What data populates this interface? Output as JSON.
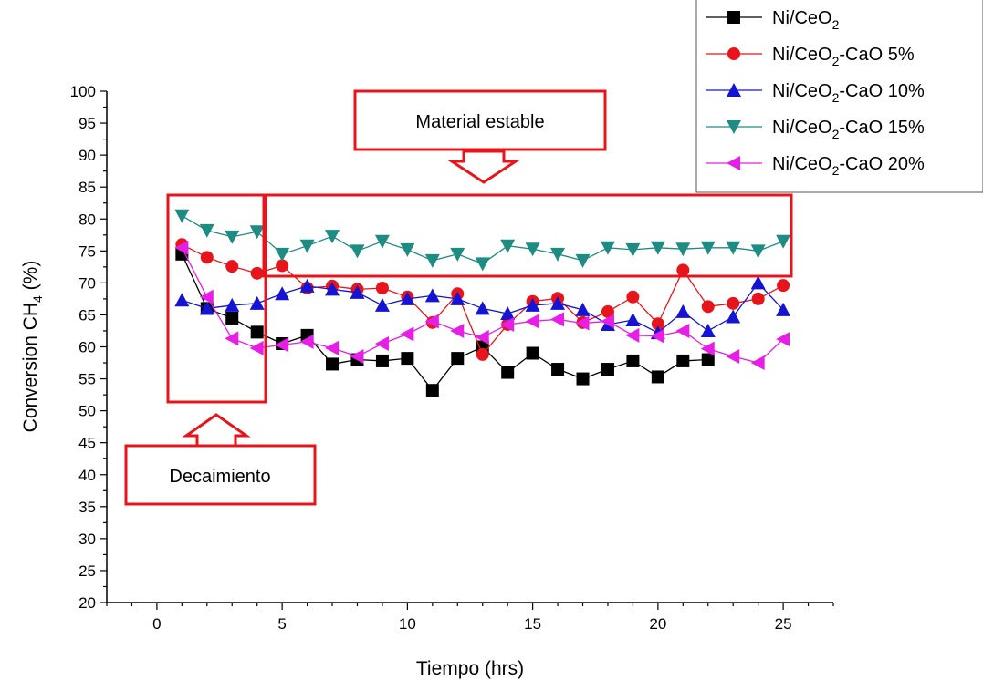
{
  "chart_data": {
    "type": "line",
    "xlabel": "Tiempo (hrs)",
    "ylabel_main": "Conversion CH",
    "ylabel_sub": "4",
    "ylabel_tail": " (%)",
    "xlim": [
      -2,
      27
    ],
    "ylim": [
      20,
      100
    ],
    "xticks": [
      0,
      5,
      10,
      15,
      20,
      25
    ],
    "yticks": [
      20,
      25,
      30,
      35,
      40,
      45,
      50,
      55,
      60,
      65,
      70,
      75,
      80,
      85,
      90,
      95,
      100
    ],
    "grid": false,
    "legend_position": "top-right",
    "series": [
      {
        "name_main": "Ni/CeO",
        "name_sub": "2",
        "name_tail": "",
        "color": "#000000",
        "marker": "square",
        "x": [
          1,
          2,
          3,
          4,
          5,
          6,
          7,
          8,
          9,
          10,
          11,
          12,
          13,
          14,
          15,
          16,
          17,
          18,
          19,
          20,
          21,
          22
        ],
        "y": [
          74.5,
          66,
          64.5,
          62.3,
          60.5,
          61.8,
          57.3,
          58,
          57.8,
          58.2,
          53.2,
          58.2,
          60,
          56,
          59,
          56.5,
          55,
          56.5,
          57.8,
          55.3,
          57.8,
          58
        ]
      },
      {
        "name_main": "Ni/CeO",
        "name_sub": "2",
        "name_tail": "-CaO 5%",
        "color": "#e8141b",
        "marker": "circle",
        "x": [
          1,
          2,
          3,
          4,
          5,
          6,
          7,
          8,
          9,
          10,
          11,
          12,
          13,
          14,
          15,
          16,
          17,
          18,
          19,
          20,
          21,
          22,
          23,
          24,
          25
        ],
        "y": [
          76,
          74,
          72.6,
          71.5,
          72.7,
          69.2,
          69.5,
          69,
          69.2,
          67.8,
          63.8,
          68.3,
          58.8,
          63.5,
          67.1,
          67.6,
          63.8,
          65.5,
          67.8,
          63.6,
          72,
          66.3,
          66.8,
          67.5,
          69.6
        ]
      },
      {
        "name_main": "Ni/CeO",
        "name_sub": "2",
        "name_tail": "-CaO 10%",
        "color": "#1414d2",
        "marker": "triangle-up",
        "x": [
          1,
          2,
          3,
          4,
          5,
          6,
          7,
          8,
          9,
          10,
          11,
          12,
          13,
          14,
          15,
          16,
          17,
          18,
          19,
          20,
          21,
          22,
          23,
          24,
          25
        ],
        "y": [
          67.3,
          66,
          66.5,
          66.8,
          68.3,
          69.5,
          69,
          68.5,
          66.5,
          67.5,
          68,
          67.5,
          66,
          65.2,
          66.5,
          66.8,
          65.8,
          63.5,
          64.2,
          62.2,
          65.5,
          62.5,
          64.7,
          70,
          65.8
        ]
      },
      {
        "name_main": "Ni/CeO",
        "name_sub": "2",
        "name_tail": "-CaO 15%",
        "color": "#1e8c82",
        "marker": "triangle-down",
        "x": [
          1,
          2,
          3,
          4,
          5,
          6,
          7,
          8,
          9,
          10,
          11,
          12,
          13,
          14,
          15,
          16,
          17,
          18,
          19,
          20,
          21,
          22,
          23,
          24,
          25
        ],
        "y": [
          80.5,
          78.2,
          77.2,
          78,
          74.5,
          75.8,
          77.3,
          75,
          76.5,
          75.2,
          73.5,
          74.5,
          73,
          75.8,
          75.3,
          74.5,
          73.5,
          75.5,
          75.2,
          75.5,
          75.3,
          75.5,
          75.5,
          75,
          76.5
        ]
      },
      {
        "name_main": "Ni/CeO",
        "name_sub": "2",
        "name_tail": "-CaO 20%",
        "color": "#e61ee6",
        "marker": "triangle-left",
        "x": [
          1,
          2,
          3,
          4,
          5,
          6,
          7,
          8,
          9,
          10,
          11,
          12,
          13,
          14,
          15,
          16,
          17,
          18,
          19,
          20,
          21,
          22,
          23,
          24,
          25
        ],
        "y": [
          75.5,
          67.8,
          61.3,
          59.8,
          60.3,
          60.8,
          59.8,
          58.5,
          60.5,
          62,
          64,
          62.5,
          61.5,
          63.5,
          64,
          64.3,
          63.7,
          64,
          61.8,
          61.7,
          62.5,
          59.7,
          58.5,
          57.5,
          61.2
        ]
      }
    ]
  },
  "annotations": {
    "top_label": "Material estable",
    "bottom_label": "Decaimiento"
  },
  "colors": {
    "annotation": "#e8141b"
  }
}
